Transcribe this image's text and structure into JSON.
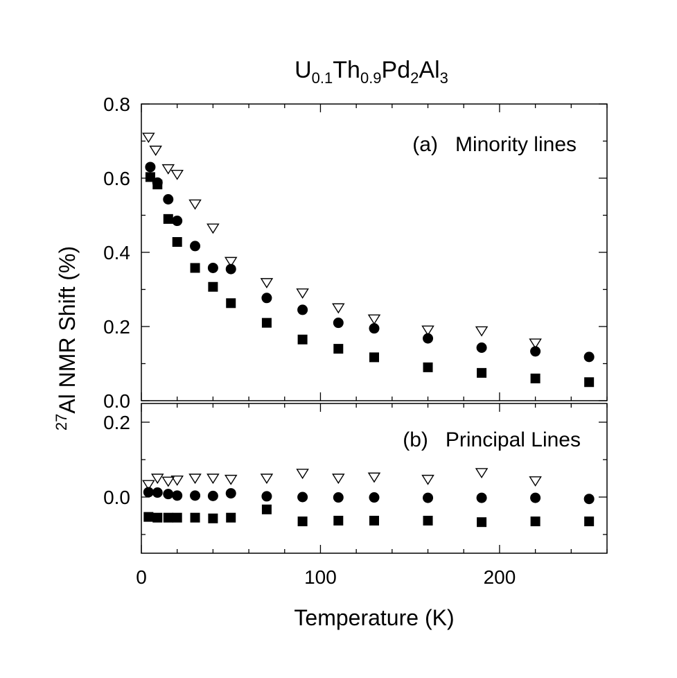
{
  "chart_data": {
    "type": "scatter",
    "title": {
      "base1": "U",
      "sub1": "0.1",
      "base2": "Th",
      "sub2": "0.9",
      "base3": "Pd",
      "sub3": "2",
      "base4": "Al",
      "sub4": "3"
    },
    "xlabel": "Temperature  (K)",
    "ylabel": {
      "sup": "27",
      "text": "Al NMR Shift  (%)"
    },
    "xlim": [
      0,
      260
    ],
    "x_ticks": [
      "0",
      "100",
      "200"
    ],
    "panels": [
      {
        "id": "a",
        "label": "(a)   Minority lines",
        "ylim": [
          0,
          0.8
        ],
        "y_ticks": [
          "0.0",
          "0.2",
          "0.4",
          "0.6",
          "0.8"
        ],
        "series": [
          {
            "name": "triangle",
            "marker": "open-triangle-down",
            "points": [
              [
                4,
                0.71
              ],
              [
                8,
                0.675
              ],
              [
                15,
                0.625
              ],
              [
                20,
                0.61
              ],
              [
                30,
                0.53
              ],
              [
                40,
                0.465
              ],
              [
                50,
                0.375
              ],
              [
                70,
                0.318
              ],
              [
                90,
                0.29
              ],
              [
                110,
                0.25
              ],
              [
                130,
                0.22
              ],
              [
                160,
                0.19
              ],
              [
                190,
                0.188
              ],
              [
                220,
                0.155
              ]
            ]
          },
          {
            "name": "circle",
            "marker": "filled-circle",
            "points": [
              [
                5,
                0.63
              ],
              [
                9,
                0.588
              ],
              [
                15,
                0.543
              ],
              [
                20,
                0.485
              ],
              [
                30,
                0.417
              ],
              [
                40,
                0.358
              ],
              [
                50,
                0.355
              ],
              [
                70,
                0.277
              ],
              [
                90,
                0.245
              ],
              [
                110,
                0.21
              ],
              [
                130,
                0.195
              ],
              [
                160,
                0.168
              ],
              [
                190,
                0.143
              ],
              [
                220,
                0.133
              ],
              [
                250,
                0.118
              ]
            ]
          },
          {
            "name": "square",
            "marker": "filled-square",
            "points": [
              [
                5,
                0.603
              ],
              [
                9,
                0.583
              ],
              [
                15,
                0.49
              ],
              [
                20,
                0.428
              ],
              [
                30,
                0.358
              ],
              [
                40,
                0.307
              ],
              [
                50,
                0.263
              ],
              [
                70,
                0.21
              ],
              [
                90,
                0.165
              ],
              [
                110,
                0.14
              ],
              [
                130,
                0.117
              ],
              [
                160,
                0.09
              ],
              [
                190,
                0.075
              ],
              [
                220,
                0.06
              ],
              [
                250,
                0.05
              ]
            ]
          }
        ]
      },
      {
        "id": "b",
        "label": "(b)   Principal Lines",
        "ylim": [
          -0.15,
          0.25
        ],
        "y_ticks": [
          "0.0",
          "0.2"
        ],
        "series": [
          {
            "name": "triangle",
            "marker": "open-triangle-down",
            "points": [
              [
                4,
                0.033
              ],
              [
                9,
                0.05
              ],
              [
                15,
                0.042
              ],
              [
                20,
                0.045
              ],
              [
                30,
                0.05
              ],
              [
                40,
                0.05
              ],
              [
                50,
                0.047
              ],
              [
                70,
                0.05
              ],
              [
                90,
                0.063
              ],
              [
                110,
                0.05
              ],
              [
                130,
                0.053
              ],
              [
                160,
                0.047
              ],
              [
                190,
                0.065
              ],
              [
                220,
                0.043
              ]
            ]
          },
          {
            "name": "circle",
            "marker": "filled-circle",
            "points": [
              [
                4,
                0.013
              ],
              [
                9,
                0.012
              ],
              [
                15,
                0.008
              ],
              [
                20,
                0.004
              ],
              [
                30,
                0.004
              ],
              [
                40,
                0.003
              ],
              [
                50,
                0.01
              ],
              [
                70,
                0.002
              ],
              [
                90,
                0.0
              ],
              [
                110,
                -0.001
              ],
              [
                130,
                -0.001
              ],
              [
                160,
                -0.002
              ],
              [
                190,
                -0.002
              ],
              [
                220,
                -0.002
              ],
              [
                250,
                -0.005
              ]
            ]
          },
          {
            "name": "square",
            "marker": "filled-square",
            "points": [
              [
                4,
                -0.053
              ],
              [
                9,
                -0.055
              ],
              [
                15,
                -0.055
              ],
              [
                20,
                -0.055
              ],
              [
                30,
                -0.055
              ],
              [
                40,
                -0.057
              ],
              [
                50,
                -0.055
              ],
              [
                70,
                -0.033
              ],
              [
                90,
                -0.065
              ],
              [
                110,
                -0.063
              ],
              [
                130,
                -0.063
              ],
              [
                160,
                -0.063
              ],
              [
                190,
                -0.067
              ],
              [
                220,
                -0.065
              ],
              [
                250,
                -0.065
              ]
            ]
          }
        ]
      }
    ]
  }
}
